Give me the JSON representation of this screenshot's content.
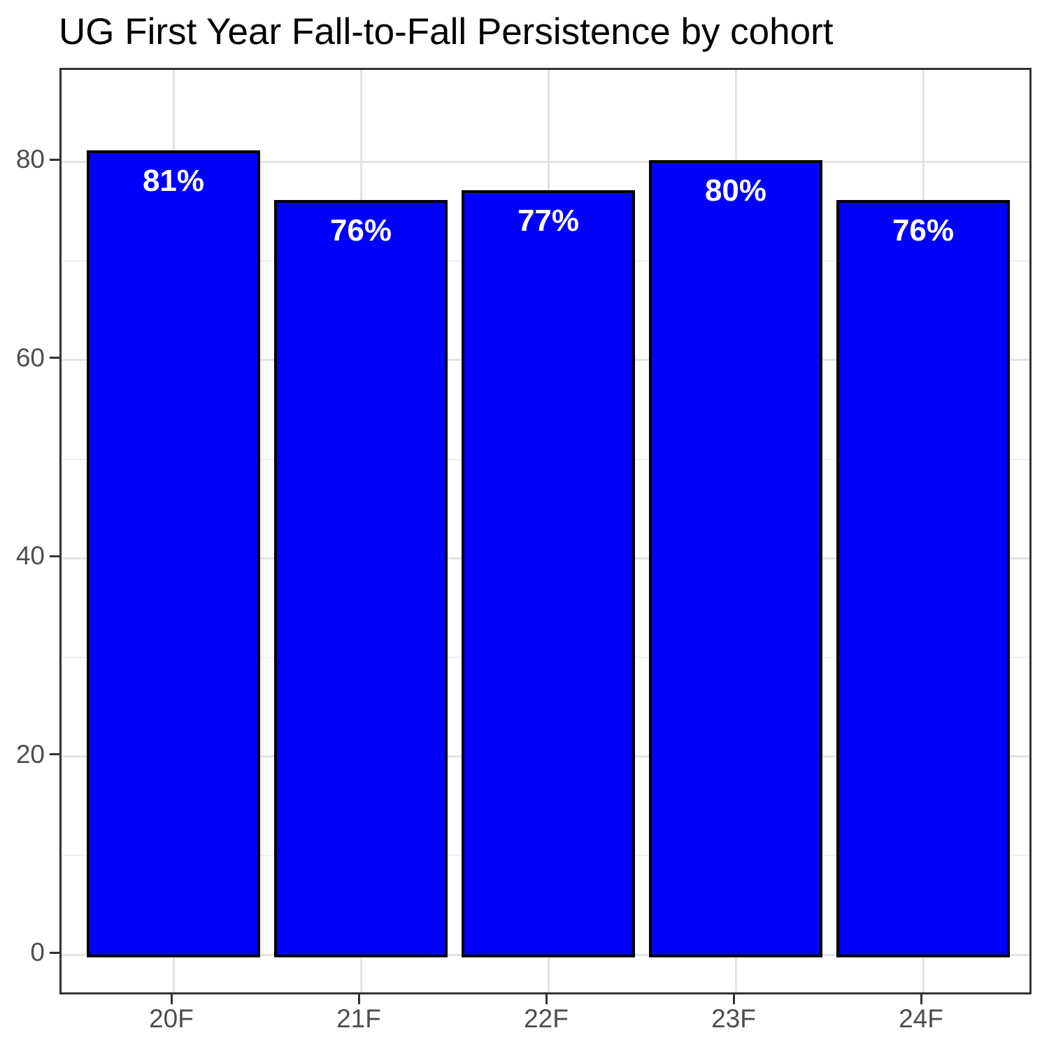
{
  "title": "UG First Year Fall-to-Fall Persistence by cohort",
  "chart_data": {
    "type": "bar",
    "title": "UG First Year Fall-to-Fall Persistence by cohort",
    "categories": [
      "20F",
      "21F",
      "22F",
      "23F",
      "24F"
    ],
    "values": [
      81,
      76,
      77,
      80,
      76
    ],
    "bar_labels": [
      "81%",
      "76%",
      "77%",
      "80%",
      "76%"
    ],
    "xlabel": "",
    "ylabel": "",
    "ylim": [
      0,
      85
    ],
    "yticks_major": [
      0,
      20,
      40,
      60,
      80
    ],
    "yticks_minor": [
      10,
      30,
      50,
      70
    ],
    "grid": "on",
    "legend": "none"
  },
  "colors": {
    "bar_fill": "#0000FF",
    "bar_border": "#000000",
    "bar_label_text": "#FFFFFF",
    "panel_border": "#333333",
    "axis_tick": "#333333",
    "axis_text": "#4D4D4D",
    "grid_major": "#E3E3E3",
    "grid_minor": "#F0F0F0",
    "title_text": "#000000",
    "background": "#FFFFFF"
  }
}
